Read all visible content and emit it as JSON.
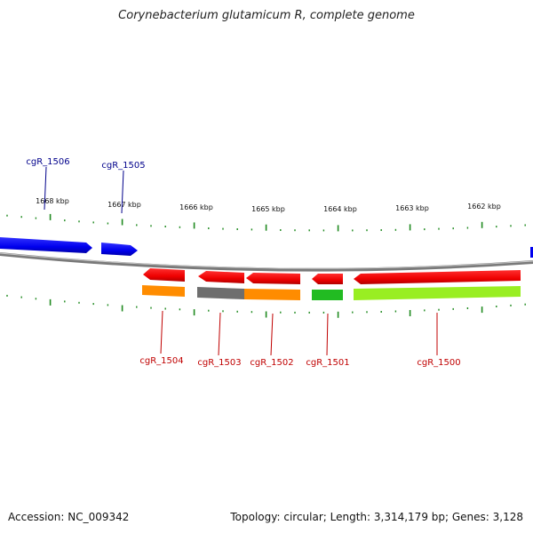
{
  "title": "Corynebacterium glutamicum R, complete genome",
  "footer": {
    "accession": "Accession: NC_009342",
    "info": "Topology: circular; Length: 3,314,179 bp; Genes: 3,128"
  },
  "colors": {
    "backbone": "#7a7a7a",
    "forward_gene": "#0000ee",
    "reverse_gene": "#ee0000",
    "tick": "#1f8a1f",
    "forward_label": "#00008b",
    "reverse_label": "#c00000"
  },
  "scale_labels": [
    "1668 kbp",
    "1667 kbp",
    "1666 kbp",
    "1665 kbp",
    "1664 kbp",
    "1663 kbp",
    "1662 kbp"
  ],
  "forward_genes": [
    {
      "label": "cgR_1506"
    },
    {
      "label": "cgR_1505"
    }
  ],
  "reverse_genes": [
    {
      "label": "cgR_1504",
      "category_color": "#ff8c00"
    },
    {
      "label": "cgR_1503",
      "category_color": "#6e6e6e"
    },
    {
      "label": "cgR_1502",
      "category_color": "#ff8c00"
    },
    {
      "label": "cgR_1501",
      "category_color": "#22bb22"
    },
    {
      "label": "cgR_1500",
      "category_color": "#99ee22"
    }
  ]
}
